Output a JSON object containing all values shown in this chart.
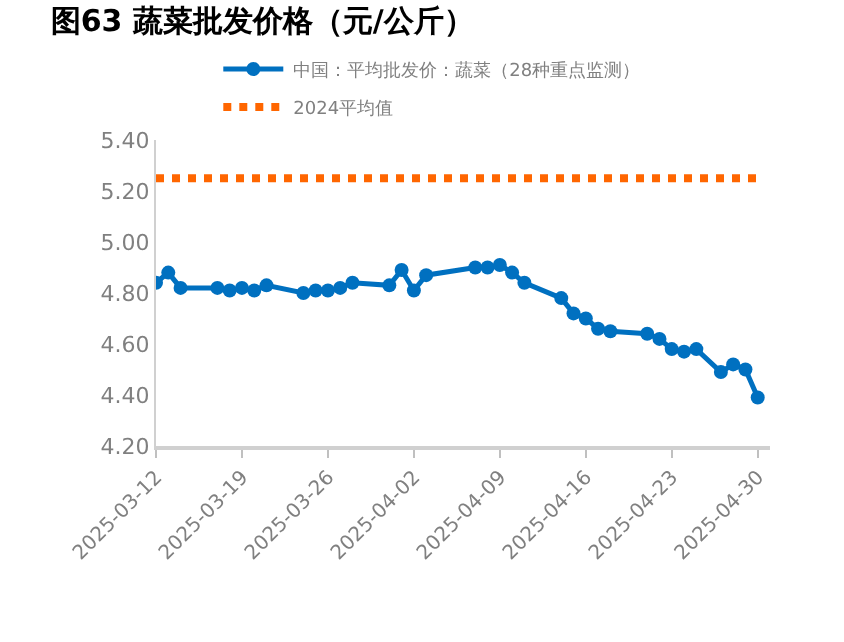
{
  "chart_data": {
    "type": "line",
    "title": "图63 蔬菜批发价格（元/公斤）",
    "x": [
      "2025-03-12",
      "2025-03-13",
      "2025-03-14",
      "2025-03-17",
      "2025-03-18",
      "2025-03-19",
      "2025-03-20",
      "2025-03-21",
      "2025-03-24",
      "2025-03-25",
      "2025-03-26",
      "2025-03-27",
      "2025-03-28",
      "2025-03-31",
      "2025-04-01",
      "2025-04-02",
      "2025-04-03",
      "2025-04-07",
      "2025-04-08",
      "2025-04-09",
      "2025-04-10",
      "2025-04-11",
      "2025-04-14",
      "2025-04-15",
      "2025-04-16",
      "2025-04-17",
      "2025-04-18",
      "2025-04-21",
      "2025-04-22",
      "2025-04-23",
      "2025-04-24",
      "2025-04-25",
      "2025-04-27",
      "2025-04-28",
      "2025-04-29",
      "2025-04-30"
    ],
    "series": [
      {
        "name": "中国：平均批发价：蔬菜（28种重点监测）",
        "color": "#0070c0",
        "marker": "circle",
        "line_style": "solid",
        "values": [
          4.84,
          4.88,
          4.82,
          4.82,
          4.81,
          4.82,
          4.81,
          4.83,
          4.8,
          4.81,
          4.81,
          4.82,
          4.84,
          4.83,
          4.89,
          4.81,
          4.87,
          4.9,
          4.9,
          4.91,
          4.88,
          4.84,
          4.78,
          4.72,
          4.7,
          4.66,
          4.65,
          4.64,
          4.62,
          4.58,
          4.57,
          4.58,
          4.49,
          4.52,
          4.5,
          4.39
        ]
      },
      {
        "name": "2024平均值",
        "color": "#ff6600",
        "marker": "none",
        "line_style": "dotted",
        "values": [
          5.25,
          5.25,
          5.25,
          5.25,
          5.25,
          5.25,
          5.25,
          5.25,
          5.25,
          5.25,
          5.25,
          5.25,
          5.25,
          5.25,
          5.25,
          5.25,
          5.25,
          5.25,
          5.25,
          5.25,
          5.25,
          5.25,
          5.25,
          5.25,
          5.25,
          5.25,
          5.25,
          5.25,
          5.25,
          5.25,
          5.25,
          5.25,
          5.25,
          5.25,
          5.25,
          5.25
        ]
      }
    ],
    "xlim": [
      "2025-03-12",
      "2025-05-01"
    ],
    "xticks": [
      "2025-03-12",
      "2025-03-19",
      "2025-03-26",
      "2025-04-02",
      "2025-04-09",
      "2025-04-16",
      "2025-04-23",
      "2025-04-30"
    ],
    "ylim": [
      4.2,
      5.4
    ],
    "yticks": [
      {
        "value": 4.2,
        "label": "4.20"
      },
      {
        "value": 4.4,
        "label": "4.40"
      },
      {
        "value": 4.6,
        "label": "4.60"
      },
      {
        "value": 4.8,
        "label": "4.80"
      },
      {
        "value": 5.0,
        "label": "5.00"
      },
      {
        "value": 5.2,
        "label": "5.20"
      },
      {
        "value": 5.4,
        "label": "5.40"
      }
    ],
    "grid": false,
    "legend": "top"
  }
}
